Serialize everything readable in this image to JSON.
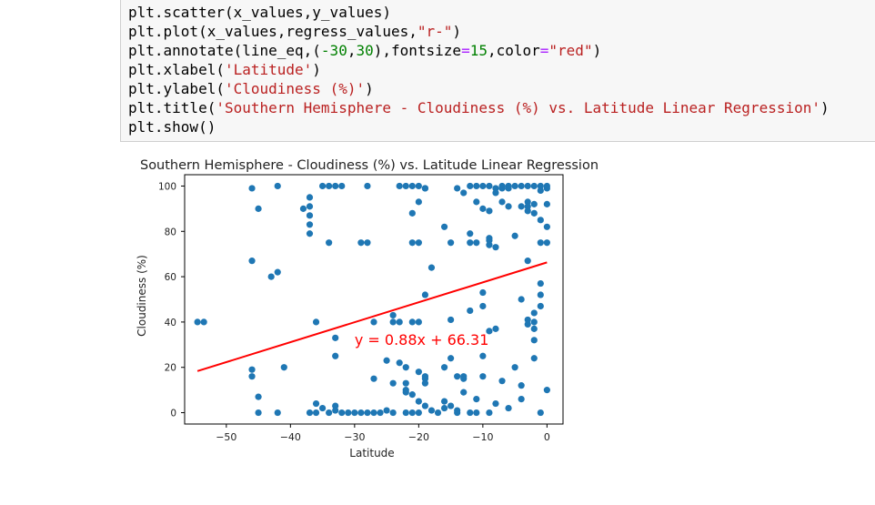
{
  "code_lines": [
    [
      {
        "t": "plt.scatter(x_values,y_values)",
        "c": ""
      }
    ],
    [
      {
        "t": "plt.plot(x_values,regress_values,",
        "c": ""
      },
      {
        "t": "\"r-\"",
        "c": "str"
      },
      {
        "t": ")",
        "c": ""
      }
    ],
    [
      {
        "t": "plt.annotate(line_eq,(",
        "c": ""
      },
      {
        "t": "-30",
        "c": "num"
      },
      {
        "t": ",",
        "c": ""
      },
      {
        "t": "30",
        "c": "num"
      },
      {
        "t": "),fontsize",
        "c": ""
      },
      {
        "t": "=",
        "c": "op"
      },
      {
        "t": "15",
        "c": "num"
      },
      {
        "t": ",color",
        "c": ""
      },
      {
        "t": "=",
        "c": "op"
      },
      {
        "t": "\"red\"",
        "c": "str"
      },
      {
        "t": ")",
        "c": ""
      }
    ],
    [
      {
        "t": "plt.xlabel(",
        "c": ""
      },
      {
        "t": "'Latitude'",
        "c": "str"
      },
      {
        "t": ")",
        "c": ""
      }
    ],
    [
      {
        "t": "plt.ylabel(",
        "c": ""
      },
      {
        "t": "'Cloudiness (%)'",
        "c": "str"
      },
      {
        "t": ")",
        "c": ""
      }
    ],
    [
      {
        "t": "plt.title(",
        "c": ""
      },
      {
        "t": "'Southern Hemisphere - Cloudiness (%) vs. Latitude Linear Regression'",
        "c": "str"
      },
      {
        "t": ")",
        "c": ""
      }
    ],
    [
      {
        "t": "plt.show()",
        "c": ""
      }
    ]
  ],
  "chart_data": {
    "type": "scatter",
    "title": "Southern Hemisphere - Cloudiness (%) vs. Latitude Linear Regression",
    "xlabel": "Latitude",
    "ylabel": "Cloudiness (%)",
    "xlim": [
      -56.5,
      2.5
    ],
    "ylim": [
      -5,
      105
    ],
    "x_ticks": [
      -50,
      -40,
      -30,
      -20,
      -10,
      0
    ],
    "y_ticks": [
      0,
      20,
      40,
      60,
      80,
      100
    ],
    "grid": false,
    "point_color": "#1f77b4",
    "line_color": "red",
    "annotation": {
      "text": "y = 0.88x + 66.31",
      "x": -30,
      "y": 30,
      "color": "red"
    },
    "regression": {
      "slope": 0.88,
      "intercept": 66.31,
      "x_start": -54.5,
      "x_end": 0
    },
    "points": [
      [
        -54.5,
        40
      ],
      [
        -53.5,
        40
      ],
      [
        -46,
        99
      ],
      [
        -46,
        67
      ],
      [
        -46,
        19
      ],
      [
        -46,
        16
      ],
      [
        -45,
        90
      ],
      [
        -45,
        7
      ],
      [
        -45,
        0
      ],
      [
        -42,
        0
      ],
      [
        -43,
        60
      ],
      [
        -42,
        62
      ],
      [
        -42,
        100
      ],
      [
        -41,
        20
      ],
      [
        -38,
        90
      ],
      [
        -37,
        91
      ],
      [
        -37,
        95
      ],
      [
        -37,
        87
      ],
      [
        -37,
        83
      ],
      [
        -37,
        79
      ],
      [
        -37,
        0
      ],
      [
        -36,
        4
      ],
      [
        -36,
        40
      ],
      [
        -35,
        100
      ],
      [
        -35,
        2
      ],
      [
        -34,
        100
      ],
      [
        -34,
        0
      ],
      [
        -33,
        100
      ],
      [
        -34,
        75
      ],
      [
        -32,
        100
      ],
      [
        -33,
        3
      ],
      [
        -33,
        1
      ],
      [
        -33,
        25
      ],
      [
        -33,
        33
      ],
      [
        -32,
        0
      ],
      [
        -31,
        0
      ],
      [
        -30,
        0
      ],
      [
        -29,
        0
      ],
      [
        -28,
        0
      ],
      [
        -29,
        75
      ],
      [
        -28,
        75
      ],
      [
        -28,
        100
      ],
      [
        -27,
        0
      ],
      [
        -27,
        40
      ],
      [
        -26,
        0
      ],
      [
        -25,
        1
      ],
      [
        -24,
        0
      ],
      [
        -25,
        23
      ],
      [
        -24,
        13
      ],
      [
        -23,
        22
      ],
      [
        -22,
        20
      ],
      [
        -22,
        13
      ],
      [
        -22,
        10
      ],
      [
        -22,
        9
      ],
      [
        -21,
        8
      ],
      [
        -22,
        0
      ],
      [
        -21,
        0
      ],
      [
        -20,
        0
      ],
      [
        -24,
        43
      ],
      [
        -24,
        40
      ],
      [
        -23,
        40
      ],
      [
        -21,
        40
      ],
      [
        -20,
        40
      ],
      [
        -23,
        100
      ],
      [
        -22,
        100
      ],
      [
        -21,
        100
      ],
      [
        -20,
        100
      ],
      [
        -19,
        99
      ],
      [
        -21,
        88
      ],
      [
        -20,
        93
      ],
      [
        -21,
        75
      ],
      [
        -20,
        75
      ],
      [
        -19,
        99
      ],
      [
        -20,
        18
      ],
      [
        -19,
        16
      ],
      [
        -19,
        15
      ],
      [
        -19,
        13
      ],
      [
        -20,
        5
      ],
      [
        -19,
        3
      ],
      [
        -18,
        1
      ],
      [
        -17,
        0
      ],
      [
        -16,
        2
      ],
      [
        -16,
        5
      ],
      [
        -15,
        3
      ],
      [
        -14,
        1
      ],
      [
        -16,
        82
      ],
      [
        -15,
        75
      ],
      [
        -14,
        99
      ],
      [
        -13,
        97
      ],
      [
        -19,
        52
      ],
      [
        -18,
        64
      ],
      [
        -16,
        20
      ],
      [
        -15,
        24
      ],
      [
        -15,
        41
      ],
      [
        -14,
        0
      ],
      [
        -13,
        15
      ],
      [
        -13,
        16
      ],
      [
        -13,
        9
      ],
      [
        -12,
        0
      ],
      [
        -12,
        79
      ],
      [
        -12,
        75
      ],
      [
        -11,
        75
      ],
      [
        -11,
        0
      ],
      [
        -12,
        45
      ],
      [
        -12,
        100
      ],
      [
        -11,
        100
      ],
      [
        -10,
        100
      ],
      [
        -11,
        93
      ],
      [
        -10,
        90
      ],
      [
        -10,
        47
      ],
      [
        -10,
        53
      ],
      [
        -10,
        16
      ],
      [
        -10,
        25
      ],
      [
        -11,
        6
      ],
      [
        -9,
        100
      ],
      [
        -9,
        89
      ],
      [
        -9,
        77
      ],
      [
        -9,
        74
      ],
      [
        -9,
        76
      ],
      [
        -8,
        73
      ],
      [
        -9,
        36
      ],
      [
        -8,
        37
      ],
      [
        -8,
        4
      ],
      [
        -9,
        0
      ],
      [
        -8,
        99
      ],
      [
        -8,
        97
      ],
      [
        -7,
        100
      ],
      [
        -7,
        99
      ],
      [
        -7,
        93
      ],
      [
        -6,
        91
      ],
      [
        -6,
        100
      ],
      [
        -6,
        99
      ],
      [
        -5,
        100
      ],
      [
        -5,
        78
      ],
      [
        -5,
        20
      ],
      [
        -4,
        100
      ],
      [
        -4,
        91
      ],
      [
        -4,
        50
      ],
      [
        -4,
        12
      ],
      [
        -4,
        6
      ],
      [
        -3,
        100
      ],
      [
        -3,
        93
      ],
      [
        -3,
        91
      ],
      [
        -3,
        89
      ],
      [
        -3,
        67
      ],
      [
        -3,
        39
      ],
      [
        -3,
        41
      ],
      [
        -2,
        37
      ],
      [
        -2,
        44
      ],
      [
        -2,
        40
      ],
      [
        -2,
        32
      ],
      [
        -2,
        24
      ],
      [
        -2,
        100
      ],
      [
        -2,
        92
      ],
      [
        -2,
        88
      ],
      [
        -1,
        100
      ],
      [
        -1,
        98
      ],
      [
        -1,
        85
      ],
      [
        -1,
        75
      ],
      [
        -1,
        52
      ],
      [
        -1,
        57
      ],
      [
        -1,
        47
      ],
      [
        -1,
        0
      ],
      [
        0,
        100
      ],
      [
        0,
        99
      ],
      [
        0,
        92
      ],
      [
        0,
        82
      ],
      [
        0,
        75
      ],
      [
        0,
        10
      ],
      [
        -6,
        2
      ],
      [
        -7,
        14
      ],
      [
        -14,
        16
      ],
      [
        -27,
        15
      ],
      [
        -36,
        0
      ]
    ]
  }
}
